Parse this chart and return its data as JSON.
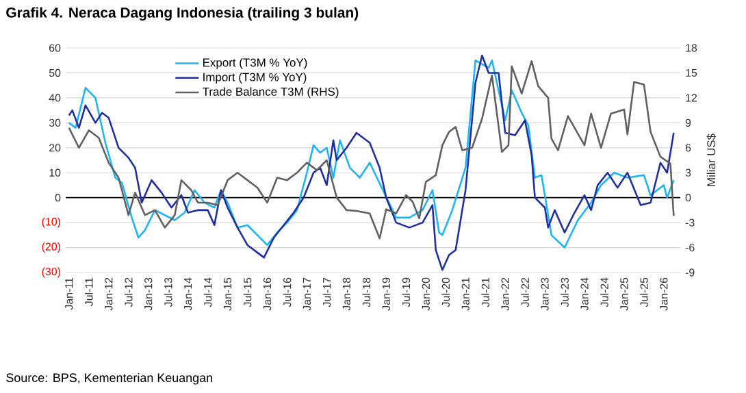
{
  "chart_data": {
    "type": "line",
    "title": "Grafik 4. Neraca Dagang Indonesia (trailing 3 bulan)",
    "y2label": "Miliar US$",
    "annotations": [
      "Source: BPS, Kementerian Keuangan"
    ],
    "series": [
      {
        "name": "Export (T3M % YoY)",
        "color": "#1eb4f0",
        "axis": "y",
        "x": [
          "2011-01",
          "2011-03",
          "2011-06",
          "2011-09",
          "2011-12",
          "2012-03",
          "2012-05",
          "2012-08",
          "2012-10",
          "2012-12",
          "2013-03",
          "2013-06",
          "2013-09",
          "2013-12",
          "2014-03",
          "2014-06",
          "2014-09",
          "2014-11",
          "2015-01",
          "2015-04",
          "2015-07",
          "2015-10",
          "2016-01",
          "2016-04",
          "2016-07",
          "2016-10",
          "2017-01",
          "2017-03",
          "2017-05",
          "2017-07",
          "2017-09",
          "2017-11",
          "2018-02",
          "2018-05",
          "2018-08",
          "2018-12",
          "2019-04",
          "2019-08",
          "2019-12",
          "2020-03",
          "2020-05",
          "2020-06",
          "2020-09",
          "2021-01",
          "2021-04",
          "2021-08",
          "2021-09",
          "2022-01",
          "2022-03",
          "2022-06",
          "2022-08",
          "2022-10",
          "2022-12",
          "2023-03",
          "2023-07",
          "2023-11",
          "2024-03",
          "2024-06",
          "2024-10",
          "2025-02",
          "2025-07",
          "2025-09",
          "2026-01",
          "2026-02",
          "2026-04"
        ],
        "values": [
          30,
          28,
          44,
          40,
          22,
          8,
          6,
          -8,
          -16,
          -13,
          -5,
          -7,
          -9,
          -6,
          3,
          -2,
          -4,
          3,
          -2,
          -12,
          -11,
          -15,
          -19,
          -14,
          -10,
          -5,
          10,
          21,
          18,
          20,
          8,
          23,
          12,
          8,
          14,
          3,
          -8,
          -8,
          -5,
          3,
          -14,
          -15,
          -5,
          12,
          55,
          52,
          55,
          31,
          43,
          34,
          29,
          8,
          9,
          -15,
          -20,
          -9,
          -2,
          5,
          10,
          8,
          9,
          1,
          5,
          0,
          7
        ]
      },
      {
        "name": "Import (T3M % YoY)",
        "color": "#1f2f9e",
        "axis": "y",
        "x": [
          "2011-01",
          "2011-02",
          "2011-04",
          "2011-06",
          "2011-09",
          "2011-11",
          "2012-01",
          "2012-04",
          "2012-07",
          "2012-09",
          "2012-11",
          "2013-02",
          "2013-05",
          "2013-08",
          "2013-11",
          "2014-01",
          "2014-04",
          "2014-07",
          "2014-09",
          "2014-11",
          "2015-01",
          "2015-04",
          "2015-07",
          "2015-10",
          "2015-12",
          "2016-03",
          "2016-06",
          "2016-09",
          "2016-12",
          "2017-03",
          "2017-05",
          "2017-07",
          "2017-09",
          "2017-10",
          "2018-01",
          "2018-04",
          "2018-08",
          "2018-11",
          "2019-01",
          "2019-04",
          "2019-08",
          "2019-12",
          "2020-03",
          "2020-04",
          "2020-06",
          "2020-08",
          "2020-10",
          "2021-01",
          "2021-04",
          "2021-06",
          "2021-08",
          "2021-11",
          "2022-01",
          "2022-04",
          "2022-07",
          "2022-09",
          "2022-10",
          "2023-01",
          "2023-02",
          "2023-04",
          "2023-07",
          "2023-10",
          "2024-01",
          "2024-03",
          "2024-05",
          "2024-08",
          "2024-11",
          "2025-02",
          "2025-06",
          "2025-09",
          "2025-12",
          "2026-02",
          "2026-04"
        ],
        "values": [
          33,
          35,
          28,
          37,
          30,
          34,
          32,
          20,
          16,
          12,
          -2,
          7,
          2,
          -4,
          1,
          -6,
          -5,
          -5,
          -11,
          3,
          -4,
          -12,
          -19,
          -22,
          -24,
          -16,
          -11,
          -6,
          0,
          10,
          12,
          5,
          23,
          15,
          20,
          26,
          22,
          12,
          0,
          -10,
          -12,
          -10,
          -3,
          -21,
          -29,
          -23,
          -21,
          3,
          46,
          57,
          50,
          50,
          26,
          25,
          31,
          17,
          0,
          -4,
          -12,
          -5,
          -14,
          -6,
          1,
          -5,
          5,
          10,
          4,
          10,
          -3,
          -2,
          14,
          10,
          26
        ]
      },
      {
        "name": "Trade Balance T3M (RHS)",
        "color": "#606060",
        "axis": "y2",
        "x": [
          "2011-01",
          "2011-04",
          "2011-07",
          "2011-10",
          "2012-01",
          "2012-04",
          "2012-07",
          "2012-09",
          "2012-12",
          "2013-03",
          "2013-06",
          "2013-09",
          "2013-11",
          "2014-02",
          "2014-04",
          "2014-07",
          "2014-10",
          "2015-01",
          "2015-04",
          "2015-07",
          "2015-10",
          "2016-01",
          "2016-04",
          "2016-07",
          "2016-10",
          "2017-01",
          "2017-04",
          "2017-07",
          "2017-10",
          "2018-01",
          "2018-04",
          "2018-08",
          "2018-11",
          "2019-01",
          "2019-04",
          "2019-07",
          "2019-09",
          "2019-11",
          "2020-01",
          "2020-04",
          "2020-06",
          "2020-08",
          "2020-10",
          "2020-12",
          "2021-03",
          "2021-06",
          "2021-09",
          "2021-12",
          "2022-02",
          "2022-03",
          "2022-06",
          "2022-09",
          "2022-11",
          "2023-02",
          "2023-03",
          "2023-05",
          "2023-08",
          "2024-01",
          "2024-03",
          "2024-06",
          "2024-09",
          "2025-01",
          "2025-02",
          "2025-04",
          "2025-07",
          "2025-09",
          "2025-12",
          "2026-03",
          "2026-04"
        ],
        "values": [
          8.4,
          6,
          8.1,
          7.2,
          4.2,
          2.4,
          -2.1,
          0.6,
          -2.1,
          -1.5,
          -3.6,
          -2.1,
          2.1,
          0.9,
          -0.6,
          -0.6,
          -0.9,
          2.1,
          3,
          2.1,
          1.2,
          -0.6,
          2.4,
          2.1,
          3,
          4.2,
          3.3,
          4.5,
          0,
          -1.5,
          -1.6,
          -1.9,
          -4.9,
          -1.4,
          -1.9,
          0.3,
          -0.5,
          -2.5,
          1.9,
          2.7,
          6.3,
          7.9,
          8.5,
          5.7,
          6,
          9.5,
          14.7,
          5.5,
          6.3,
          15.8,
          12.5,
          16.4,
          13.4,
          12,
          7.1,
          5.7,
          9.8,
          6.3,
          10.1,
          6,
          10.1,
          10.6,
          7.6,
          13.9,
          13.6,
          7.9,
          4.9,
          4.1,
          -2.2
        ]
      }
    ],
    "xlim": [
      "2010-12",
      "2026-06"
    ],
    "xticks": [
      {
        "value": "2011-01",
        "label": "Jan-11"
      },
      {
        "value": "2011-07",
        "label": "Jul-11"
      },
      {
        "value": "2012-01",
        "label": "Jan-12"
      },
      {
        "value": "2012-07",
        "label": "Jul-12"
      },
      {
        "value": "2013-01",
        "label": "Jan-13"
      },
      {
        "value": "2013-07",
        "label": "Jul-13"
      },
      {
        "value": "2014-01",
        "label": "Jan-14"
      },
      {
        "value": "2014-07",
        "label": "Jul-14"
      },
      {
        "value": "2015-01",
        "label": "Jan-15"
      },
      {
        "value": "2015-07",
        "label": "Jul-15"
      },
      {
        "value": "2016-01",
        "label": "Jan-16"
      },
      {
        "value": "2016-07",
        "label": "Jul-16"
      },
      {
        "value": "2017-01",
        "label": "Jan-17"
      },
      {
        "value": "2017-07",
        "label": "Jul-17"
      },
      {
        "value": "2018-01",
        "label": "Jan-18"
      },
      {
        "value": "2018-07",
        "label": "Jul-18"
      },
      {
        "value": "2019-01",
        "label": "Jan-19"
      },
      {
        "value": "2019-07",
        "label": "Jul-19"
      },
      {
        "value": "2020-01",
        "label": "Jan-20"
      },
      {
        "value": "2020-07",
        "label": "Jul-20"
      },
      {
        "value": "2021-01",
        "label": "Jan-21"
      },
      {
        "value": "2021-07",
        "label": "Jul-21"
      },
      {
        "value": "2022-01",
        "label": "Jan-22"
      },
      {
        "value": "2022-07",
        "label": "Jul-22"
      },
      {
        "value": "2023-01",
        "label": "Jan-23"
      },
      {
        "value": "2023-07",
        "label": "Jul-23"
      },
      {
        "value": "2024-01",
        "label": "Jan-24"
      },
      {
        "value": "2024-07",
        "label": "Jul-24"
      },
      {
        "value": "2025-01",
        "label": "Jan-25"
      },
      {
        "value": "2025-07",
        "label": "Jul-25"
      },
      {
        "value": "2026-01",
        "label": "Jan-26"
      }
    ],
    "ylim": [
      -30,
      60
    ],
    "yticks": [
      {
        "value": -30,
        "label": "(30)"
      },
      {
        "value": -20,
        "label": "(20)"
      },
      {
        "value": -10,
        "label": "(10)"
      },
      0,
      10,
      20,
      30,
      40,
      50,
      60
    ],
    "y2lim": [
      -9,
      18
    ],
    "y2ticks": [
      -9,
      -6,
      -3,
      0,
      3,
      6,
      9,
      12,
      15,
      18
    ],
    "ref_lines": [
      {
        "axis": "y",
        "value": 0,
        "color": "#000000"
      }
    ],
    "grid": "y",
    "legend": "top left",
    "marker": "none",
    "line_style": "solid"
  }
}
